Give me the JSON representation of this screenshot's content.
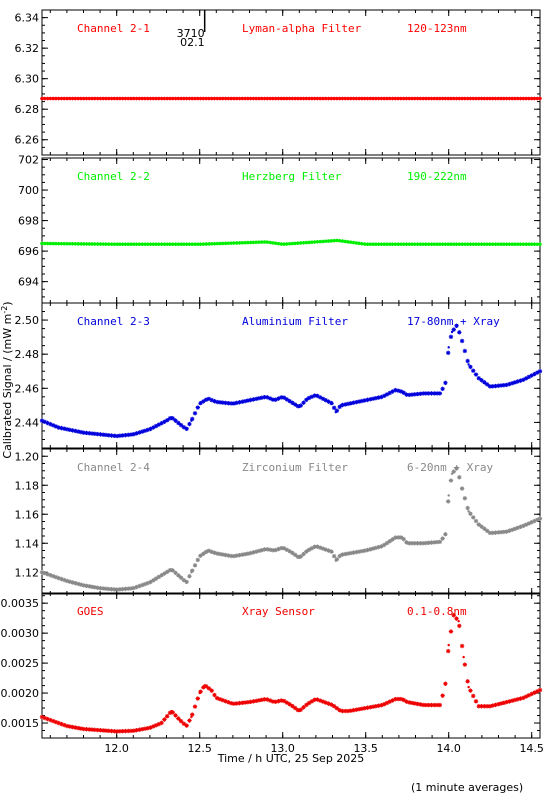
{
  "chart_data": {
    "type": "scatter",
    "xlabel": "Time / h UTC, 25 Sep 2025",
    "ylabel": "Calibrated Signal / (mW m",
    "ylabel_sup": "-2",
    "ylabel_close": ")",
    "footnote": "(1 minute averages)",
    "x_range": [
      11.55,
      14.55
    ],
    "x_ticks": [
      12.0,
      12.5,
      13.0,
      13.5,
      14.0,
      14.5
    ],
    "x_tick_labels": [
      "12.0",
      "12.5",
      "13.0",
      "13.5",
      "14.0",
      "14.5"
    ],
    "marker": {
      "label_top": "3710",
      "label_bottom": "02.1",
      "x": 12.53
    },
    "panels": [
      {
        "channel": "Channel 2-1",
        "filter": "Lyman-alpha Filter",
        "band": "120-123nm",
        "color": "#ff0000",
        "ylim": [
          6.25,
          6.345
        ],
        "y_ticks": [
          6.26,
          6.28,
          6.3,
          6.32,
          6.34
        ],
        "y_tick_labels": [
          "6.26",
          "6.28",
          "6.30",
          "6.32",
          "6.34"
        ],
        "x": [
          11.55,
          12.0,
          12.5,
          13.0,
          13.5,
          14.0,
          14.55
        ],
        "y": [
          6.287,
          6.287,
          6.287,
          6.287,
          6.287,
          6.287,
          6.287
        ]
      },
      {
        "channel": "Channel 2-2",
        "filter": "Herzberg Filter",
        "band": "190-222nm",
        "color": "#00ee00",
        "ylim": [
          692.6,
          702.1
        ],
        "y_ticks": [
          694,
          696,
          698,
          700,
          702
        ],
        "y_tick_labels": [
          "694",
          "696",
          "698",
          "700",
          "702"
        ],
        "x": [
          11.55,
          12.0,
          12.5,
          12.9,
          13.0,
          13.33,
          13.5,
          14.0,
          14.55
        ],
        "y": [
          696.5,
          696.45,
          696.45,
          696.6,
          696.45,
          696.7,
          696.45,
          696.45,
          696.45
        ]
      },
      {
        "channel": "Channel 2-3",
        "filter": "Aluminium Filter",
        "band": "17-80nm + Xray",
        "color": "#0000dd",
        "ylim": [
          2.425,
          2.51
        ],
        "y_ticks": [
          2.44,
          2.46,
          2.48,
          2.5
        ],
        "y_tick_labels": [
          "2.44",
          "2.46",
          "2.48",
          "2.50"
        ],
        "x": [
          11.55,
          11.6,
          11.65,
          11.7,
          11.8,
          11.9,
          12.0,
          12.1,
          12.2,
          12.3,
          12.33,
          12.38,
          12.42,
          12.45,
          12.5,
          12.55,
          12.6,
          12.7,
          12.8,
          12.9,
          12.95,
          13.0,
          13.05,
          13.1,
          13.15,
          13.2,
          13.3,
          13.32,
          13.35,
          13.4,
          13.5,
          13.6,
          13.68,
          13.72,
          13.75,
          13.85,
          13.95,
          13.98,
          14.0,
          14.02,
          14.05,
          14.08,
          14.12,
          14.18,
          14.25,
          14.35,
          14.45,
          14.55
        ],
        "y": [
          2.441,
          2.439,
          2.437,
          2.436,
          2.434,
          2.433,
          2.432,
          2.433,
          2.436,
          2.441,
          2.443,
          2.439,
          2.436,
          2.441,
          2.451,
          2.454,
          2.452,
          2.451,
          2.453,
          2.455,
          2.453,
          2.455,
          2.452,
          2.449,
          2.454,
          2.456,
          2.451,
          2.446,
          2.45,
          2.451,
          2.453,
          2.455,
          2.459,
          2.458,
          2.456,
          2.457,
          2.457,
          2.463,
          2.484,
          2.493,
          2.497,
          2.488,
          2.474,
          2.466,
          2.461,
          2.462,
          2.465,
          2.47
        ]
      },
      {
        "channel": "Channel 2-4",
        "filter": "Zirconium Filter",
        "band": "6-20nm + Xray",
        "color": "#888888",
        "ylim": [
          1.105,
          1.205
        ],
        "y_ticks": [
          1.12,
          1.14,
          1.16,
          1.18,
          1.2
        ],
        "y_tick_labels": [
          "1.12",
          "1.14",
          "1.16",
          "1.18",
          "1.20"
        ],
        "x": [
          11.55,
          11.6,
          11.7,
          11.8,
          11.9,
          12.0,
          12.1,
          12.2,
          12.3,
          12.33,
          12.38,
          12.42,
          12.45,
          12.5,
          12.55,
          12.6,
          12.7,
          12.8,
          12.9,
          12.95,
          13.0,
          13.05,
          13.1,
          13.15,
          13.2,
          13.3,
          13.32,
          13.35,
          13.4,
          13.5,
          13.6,
          13.68,
          13.72,
          13.75,
          13.85,
          13.95,
          13.98,
          14.0,
          14.02,
          14.05,
          14.08,
          14.12,
          14.18,
          14.25,
          14.35,
          14.45,
          14.55
        ],
        "y": [
          1.12,
          1.118,
          1.114,
          1.111,
          1.109,
          1.108,
          1.109,
          1.113,
          1.12,
          1.122,
          1.117,
          1.113,
          1.12,
          1.131,
          1.135,
          1.133,
          1.131,
          1.133,
          1.136,
          1.135,
          1.137,
          1.134,
          1.13,
          1.135,
          1.138,
          1.134,
          1.128,
          1.132,
          1.133,
          1.135,
          1.138,
          1.144,
          1.144,
          1.14,
          1.14,
          1.141,
          1.146,
          1.173,
          1.188,
          1.192,
          1.178,
          1.162,
          1.153,
          1.147,
          1.148,
          1.152,
          1.157
        ]
      },
      {
        "channel": "GOES",
        "filter": "Xray Sensor",
        "band": "0.1-0.8nm",
        "color": "#ee0000",
        "ylim": [
          0.00125,
          0.00367
        ],
        "y_ticks": [
          0.0015,
          0.002,
          0.0025,
          0.003,
          0.0035
        ],
        "y_tick_labels": [
          "0.0015",
          "0.0020",
          "0.0025",
          "0.0030",
          "0.0035"
        ],
        "x": [
          11.55,
          11.6,
          11.7,
          11.8,
          11.9,
          12.0,
          12.1,
          12.2,
          12.27,
          12.3,
          12.33,
          12.38,
          12.42,
          12.45,
          12.5,
          12.53,
          12.57,
          12.6,
          12.7,
          12.8,
          12.9,
          12.95,
          13.0,
          13.05,
          13.1,
          13.15,
          13.2,
          13.3,
          13.35,
          13.4,
          13.5,
          13.6,
          13.68,
          13.72,
          13.75,
          13.85,
          13.95,
          13.98,
          14.0,
          14.03,
          14.06,
          14.09,
          14.12,
          14.18,
          14.25,
          14.35,
          14.45,
          14.55
        ],
        "y": [
          0.0016,
          0.00155,
          0.00145,
          0.0014,
          0.00138,
          0.00136,
          0.00137,
          0.00142,
          0.0015,
          0.0016,
          0.0017,
          0.00155,
          0.00145,
          0.0016,
          0.002,
          0.00213,
          0.00205,
          0.00192,
          0.00182,
          0.00185,
          0.0019,
          0.00185,
          0.00188,
          0.0018,
          0.0017,
          0.00182,
          0.0019,
          0.0018,
          0.0017,
          0.0017,
          0.00175,
          0.0018,
          0.0019,
          0.0019,
          0.00185,
          0.0018,
          0.0018,
          0.00215,
          0.0028,
          0.0033,
          0.0032,
          0.0026,
          0.0021,
          0.00178,
          0.00178,
          0.00185,
          0.00192,
          0.00205
        ]
      }
    ]
  }
}
